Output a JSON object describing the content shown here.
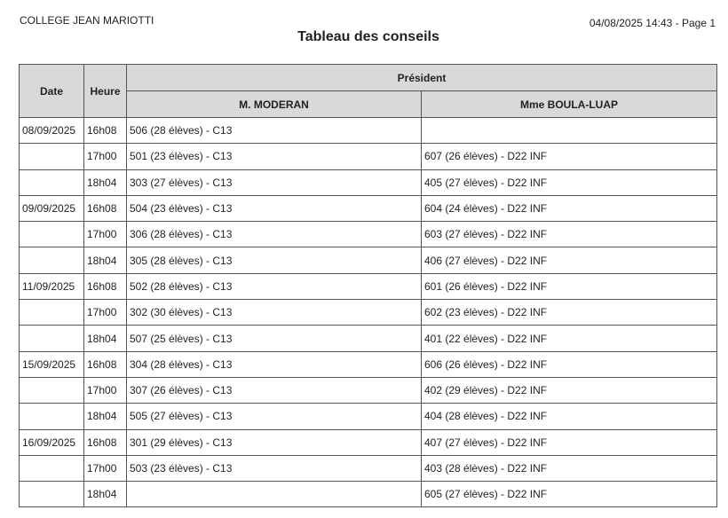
{
  "header": {
    "school": "COLLEGE JEAN MARIOTTI",
    "timestamp": "04/08/2025 14:43 - Page 1",
    "title": "Tableau des conseils"
  },
  "table": {
    "col_date": "Date",
    "col_heure": "Heure",
    "col_group": "Président",
    "presidents": [
      "M. MODERAN",
      "Mme BOULA-LUAP"
    ],
    "rows": [
      {
        "date": "08/09/2025",
        "heure": "16h08",
        "p1": "506 (28 élèves) - C13",
        "p2": ""
      },
      {
        "date": "",
        "heure": "17h00",
        "p1": "501 (23 élèves) - C13",
        "p2": "607 (26 élèves) - D22 INF"
      },
      {
        "date": "",
        "heure": "18h04",
        "p1": "303 (27 élèves) - C13",
        "p2": "405 (27 élèves) - D22 INF"
      },
      {
        "date": "09/09/2025",
        "heure": "16h08",
        "p1": "504 (23 élèves) - C13",
        "p2": "604 (24 élèves) - D22 INF"
      },
      {
        "date": "",
        "heure": "17h00",
        "p1": "306 (28 élèves) - C13",
        "p2": "603 (27 élèves) - D22 INF"
      },
      {
        "date": "",
        "heure": "18h04",
        "p1": "305 (28 élèves) - C13",
        "p2": "406 (27 élèves) - D22 INF"
      },
      {
        "date": "11/09/2025",
        "heure": "16h08",
        "p1": "502 (28 élèves) - C13",
        "p2": "601 (26 élèves) - D22 INF"
      },
      {
        "date": "",
        "heure": "17h00",
        "p1": "302 (30 élèves) - C13",
        "p2": "602 (23 élèves) - D22 INF"
      },
      {
        "date": "",
        "heure": "18h04",
        "p1": "507 (25 élèves) - C13",
        "p2": "401 (22 élèves) - D22 INF"
      },
      {
        "date": "15/09/2025",
        "heure": "16h08",
        "p1": "304 (28 élèves) - C13",
        "p2": "606 (26 élèves) - D22 INF"
      },
      {
        "date": "",
        "heure": "17h00",
        "p1": "307 (26 élèves) - C13",
        "p2": "402 (29 élèves) - D22 INF"
      },
      {
        "date": "",
        "heure": "18h04",
        "p1": "505 (27 élèves) - C13",
        "p2": "404 (28 élèves) - D22 INF"
      },
      {
        "date": "16/09/2025",
        "heure": "16h08",
        "p1": "301 (29 élèves) - C13",
        "p2": "407 (27 élèves) - D22 INF"
      },
      {
        "date": "",
        "heure": "17h00",
        "p1": "503 (23 élèves) - C13",
        "p2": "403 (28 élèves) - D22 INF"
      },
      {
        "date": "",
        "heure": "18h04",
        "p1": "",
        "p2": "605 (27 élèves) - D22 INF"
      }
    ]
  }
}
